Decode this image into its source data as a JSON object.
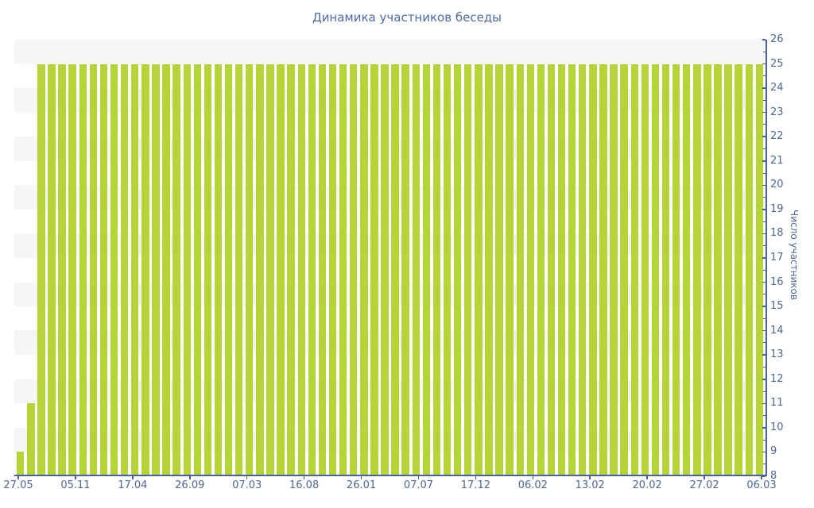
{
  "chart_data": {
    "type": "bar",
    "title": "Динамика участников беседы",
    "xlabel": "",
    "ylabel": "Число участников",
    "ylim": [
      8,
      26
    ],
    "y_ticks": [
      8,
      9,
      10,
      11,
      12,
      13,
      14,
      15,
      16,
      17,
      18,
      19,
      20,
      21,
      22,
      23,
      24,
      25,
      26
    ],
    "y_minor_tick_step": 0.5,
    "x_tick_labels": [
      "27.05",
      "05.11",
      "17.04",
      "26.09",
      "07.03",
      "16.08",
      "26.01",
      "07.07",
      "17.12",
      "06.02",
      "13.02",
      "20.02",
      "27.02",
      "06.03"
    ],
    "values": [
      9,
      11,
      25,
      25,
      25,
      25,
      25,
      25,
      25,
      25,
      25,
      25,
      25,
      25,
      25,
      25,
      25,
      25,
      25,
      25,
      25,
      25,
      25,
      25,
      25,
      25,
      25,
      25,
      25,
      25,
      25,
      25,
      25,
      25,
      25,
      25,
      25,
      25,
      25,
      25,
      25,
      25,
      25,
      25,
      25,
      25,
      25,
      25,
      25,
      25,
      25,
      25,
      25,
      25,
      25,
      25,
      25,
      25,
      25,
      25,
      25,
      25,
      25,
      25,
      25,
      25,
      25,
      25,
      25,
      25,
      25,
      25
    ],
    "legend": "none",
    "grid": "alternating horizontal bands",
    "colors": {
      "bar": "#b4d438",
      "stripe_band": "#f6f6f6",
      "axis_line": "#4a5ea9",
      "tick_text": "#4d6899",
      "title_text": "#4d6ca6",
      "background": "#ffffff"
    }
  }
}
